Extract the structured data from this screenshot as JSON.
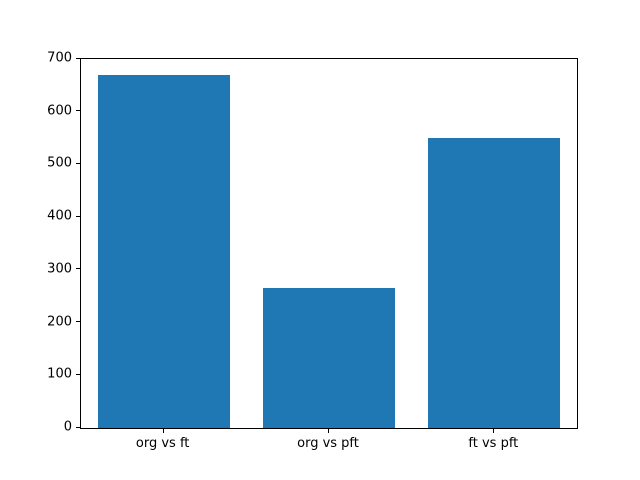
{
  "chart_data": {
    "type": "bar",
    "title": "",
    "xlabel": "",
    "ylabel": "",
    "categories": [
      "org vs ft",
      "org vs pft",
      "ft vs pft"
    ],
    "values": [
      670,
      265,
      550
    ],
    "ylim": [
      0,
      700
    ],
    "yticks": [
      0,
      100,
      200,
      300,
      400,
      500,
      600,
      700
    ],
    "bar_color": "#1f77b4",
    "bar_width_fraction": 0.8,
    "grid": false,
    "legend_position": "none",
    "background_color": "#ffffff"
  }
}
